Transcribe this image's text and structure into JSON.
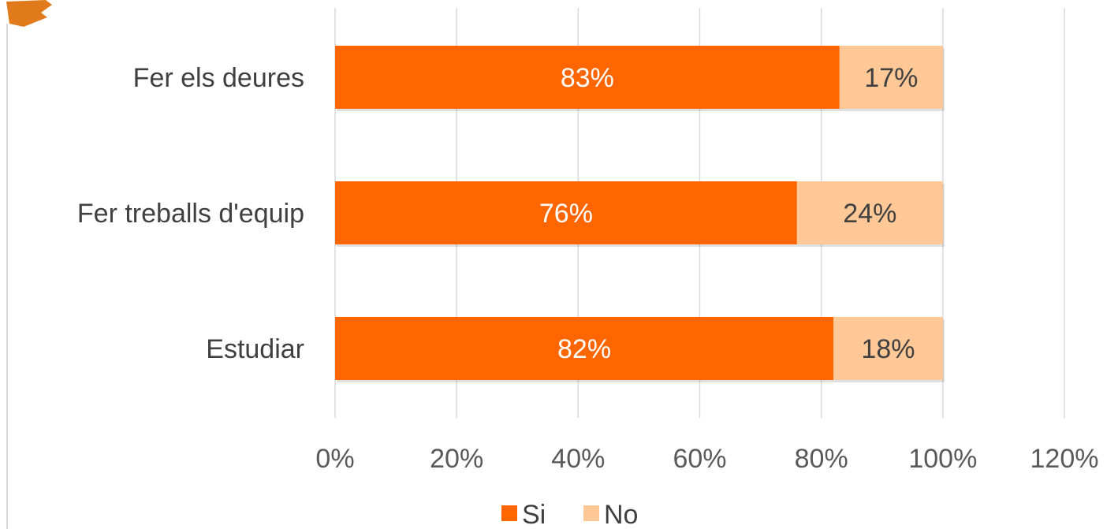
{
  "chart_data": {
    "type": "bar",
    "orientation": "horizontal",
    "stacked": true,
    "categories": [
      "Fer els deures",
      "Fer treballs d'equip",
      "Estudiar"
    ],
    "series": [
      {
        "name": "Si",
        "values": [
          83,
          76,
          82
        ],
        "labels": [
          "83%",
          "76%",
          "82%"
        ],
        "color": "#FF6600",
        "label_color": "#ffffff"
      },
      {
        "name": "No",
        "values": [
          17,
          24,
          18
        ],
        "labels": [
          "17%",
          "24%",
          "18%"
        ],
        "color": "#FFC896",
        "label_color": "#404040"
      }
    ],
    "x_ticks": [
      "0%",
      "20%",
      "40%",
      "60%",
      "80%",
      "100%",
      "120%"
    ],
    "xlim": [
      0,
      120
    ],
    "grid": true,
    "legend": "bottom",
    "title": "",
    "xlabel": "",
    "ylabel": ""
  }
}
